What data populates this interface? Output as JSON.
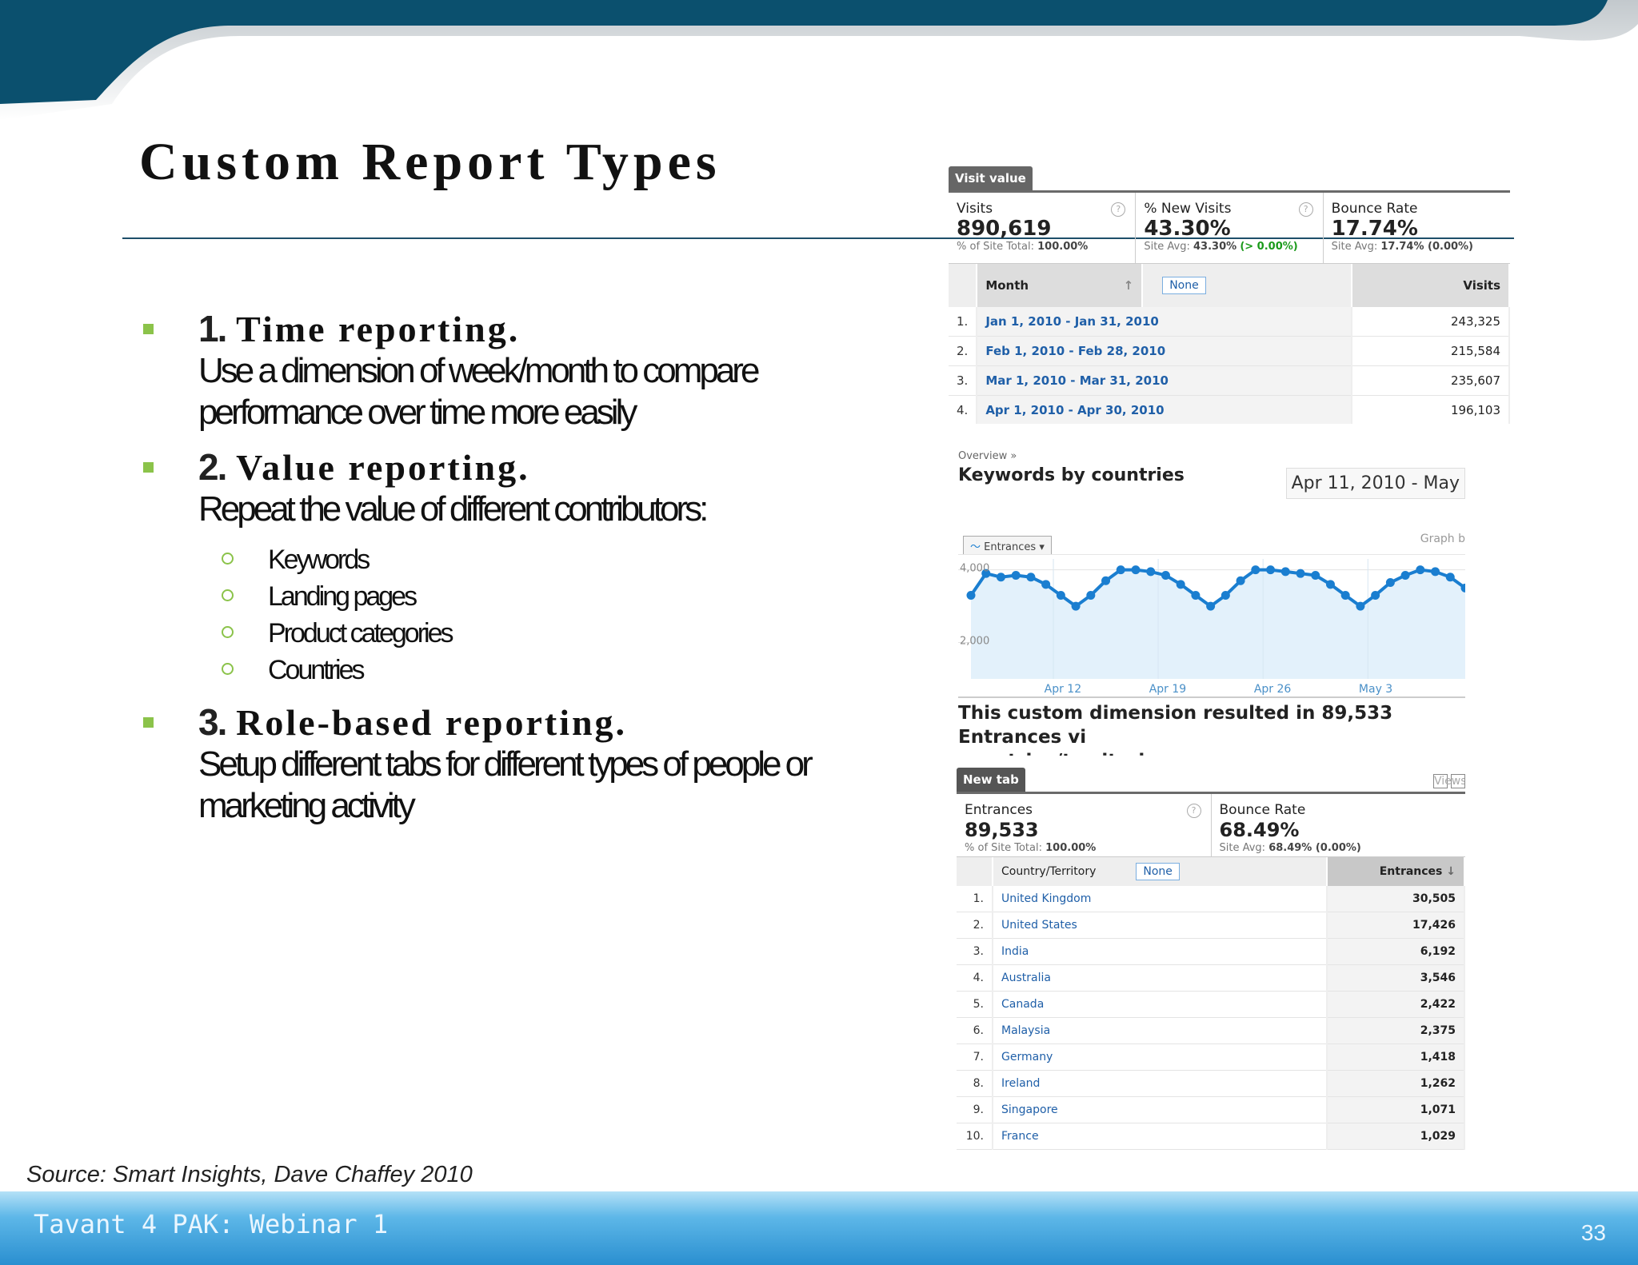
{
  "slide": {
    "title": "Custom Report Types",
    "source": "Source: Smart Insights, Dave Chaffey 2010",
    "footer": "Tavant 4 PAK: Webinar 1",
    "page_number": "33",
    "bullets": [
      {
        "num": "1.",
        "label": "Time reporting.",
        "desc": "Use a dimension of week/month to compare performance over time more easily"
      },
      {
        "num": "2.",
        "label": "Value reporting.",
        "desc": "Repeat the value of different contributors:",
        "sub": [
          "Keywords",
          "Landing pages",
          "Product categories",
          "Countries"
        ]
      },
      {
        "num": "3.",
        "label": "Role-based reporting.",
        "desc": "Setup different tabs for different types of people or marketing activity"
      }
    ]
  },
  "panel_visit": {
    "tab": "Visit value",
    "cards": [
      {
        "label": "Visits",
        "value": "890,619",
        "sub_prefix": "% of Site Total: ",
        "sub_value": "100.00%"
      },
      {
        "label": "% New Visits",
        "value": "43.30%",
        "sub_prefix": "Site Avg: ",
        "sub_value": "43.30%",
        "sub_extra": "(> 0.00%)"
      },
      {
        "label": "Bounce Rate",
        "value": "17.74%",
        "sub_prefix": "Site Avg: ",
        "sub_value": "17.74% (0.00%)"
      }
    ],
    "col_dimension": "Month",
    "col_secondary": "None",
    "col_metric": "Visits",
    "rows": [
      {
        "n": "1.",
        "month": "Jan 1, 2010 - Jan 31, 2010",
        "visits": "243,325"
      },
      {
        "n": "2.",
        "month": "Feb 1, 2010 - Feb 28, 2010",
        "visits": "215,584"
      },
      {
        "n": "3.",
        "month": "Mar 1, 2010 - Mar 31, 2010",
        "visits": "235,607"
      },
      {
        "n": "4.",
        "month": "Apr 1, 2010 - Apr 30, 2010",
        "visits": "196,103"
      }
    ]
  },
  "panel_keywords": {
    "breadcrumb": "Overview »",
    "title": "Keywords by countries",
    "date_range": "Apr 11, 2010 - May",
    "metric_button": "Entrances",
    "graph_by": "Graph b",
    "result_line1": "This custom dimension resulted in 89,533 Entrances vi",
    "result_line2": "countries/territories"
  },
  "chart_data": {
    "type": "line",
    "title": "",
    "series": [
      {
        "name": "Entrances",
        "values": [
          3300,
          3900,
          3800,
          3850,
          3800,
          3600,
          3300,
          3000,
          3300,
          3700,
          4000,
          4000,
          3950,
          3850,
          3600,
          3300,
          3000,
          3300,
          3700,
          4000,
          4000,
          3950,
          3900,
          3850,
          3600,
          3300,
          3000,
          3300,
          3650,
          3850,
          4000,
          3950,
          3800,
          3500
        ]
      }
    ],
    "y_ticks": [
      "4,000",
      "2,000"
    ],
    "x_ticks": [
      "Apr 12",
      "Apr 19",
      "Apr 26",
      "May 3"
    ],
    "ylim": [
      1000,
      4300
    ],
    "color": "#1a7ed0"
  },
  "panel_countries": {
    "tab": "New tab",
    "views": "Views:",
    "cards": [
      {
        "label": "Entrances",
        "value": "89,533",
        "sub_prefix": "% of Site Total: ",
        "sub_value": "100.00%"
      },
      {
        "label": "Bounce Rate",
        "value": "68.49%",
        "sub_prefix": "Site Avg: ",
        "sub_value": "68.49% (0.00%)"
      }
    ],
    "col_dimension": "Country/Territory",
    "col_secondary": "None",
    "col_metric": "Entrances",
    "rows": [
      {
        "n": "1.",
        "country": "United Kingdom",
        "entrances": "30,505"
      },
      {
        "n": "2.",
        "country": "United States",
        "entrances": "17,426"
      },
      {
        "n": "3.",
        "country": "India",
        "entrances": "6,192"
      },
      {
        "n": "4.",
        "country": "Australia",
        "entrances": "3,546"
      },
      {
        "n": "5.",
        "country": "Canada",
        "entrances": "2,422"
      },
      {
        "n": "6.",
        "country": "Malaysia",
        "entrances": "2,375"
      },
      {
        "n": "7.",
        "country": "Germany",
        "entrances": "1,418"
      },
      {
        "n": "8.",
        "country": "Ireland",
        "entrances": "1,262"
      },
      {
        "n": "9.",
        "country": "Singapore",
        "entrances": "1,071"
      },
      {
        "n": "10.",
        "country": "France",
        "entrances": "1,029"
      }
    ]
  }
}
